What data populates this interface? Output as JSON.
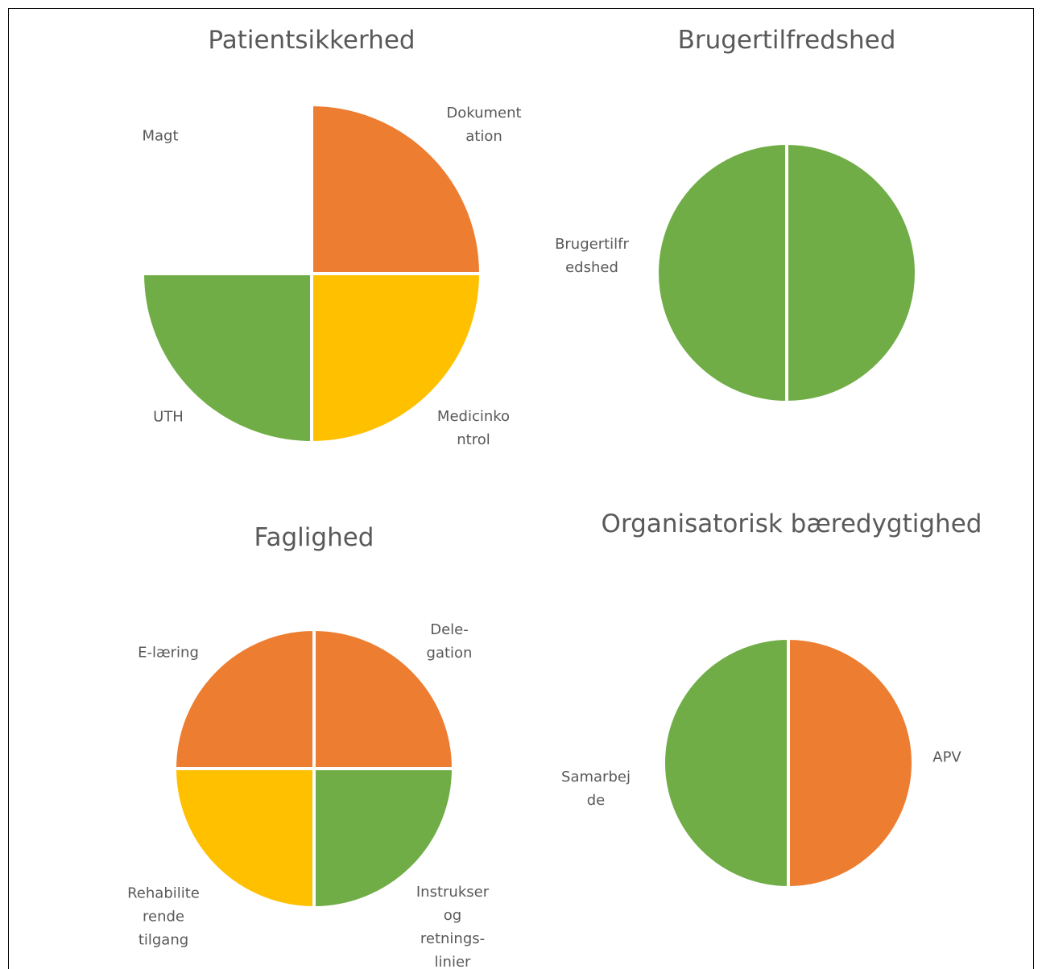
{
  "chart_data": [
    {
      "type": "pie",
      "title": "Patientsikkerhed",
      "categories": [
        "Dokumentation",
        "Medicinkontrol",
        "UTH",
        "Magt"
      ],
      "values": [
        25,
        25,
        25,
        25
      ],
      "colors": [
        "#ed7d31",
        "#ffc000",
        "#70ad47",
        "#ffffff"
      ]
    },
    {
      "type": "pie",
      "title": "Brugertilfredshed",
      "categories": [
        null,
        "Brugertilfredshed"
      ],
      "values": [
        50,
        50
      ],
      "colors": [
        "#70ad47",
        "#70ad47"
      ]
    },
    {
      "type": "pie",
      "title": "Faglighed",
      "categories": [
        "Dele-gation",
        "Instrukser og retnings-linier",
        "Rehabiliterende tilgang",
        "E-læring"
      ],
      "values": [
        25,
        25,
        25,
        25
      ],
      "colors": [
        "#ed7d31",
        "#70ad47",
        "#ffc000",
        "#ed7d31"
      ]
    },
    {
      "type": "pie",
      "title": "Organisatorisk bæredygtighed",
      "categories": [
        "APV",
        "Samarbejde"
      ],
      "values": [
        50,
        50
      ],
      "colors": [
        "#ed7d31",
        "#70ad47"
      ]
    }
  ]
}
